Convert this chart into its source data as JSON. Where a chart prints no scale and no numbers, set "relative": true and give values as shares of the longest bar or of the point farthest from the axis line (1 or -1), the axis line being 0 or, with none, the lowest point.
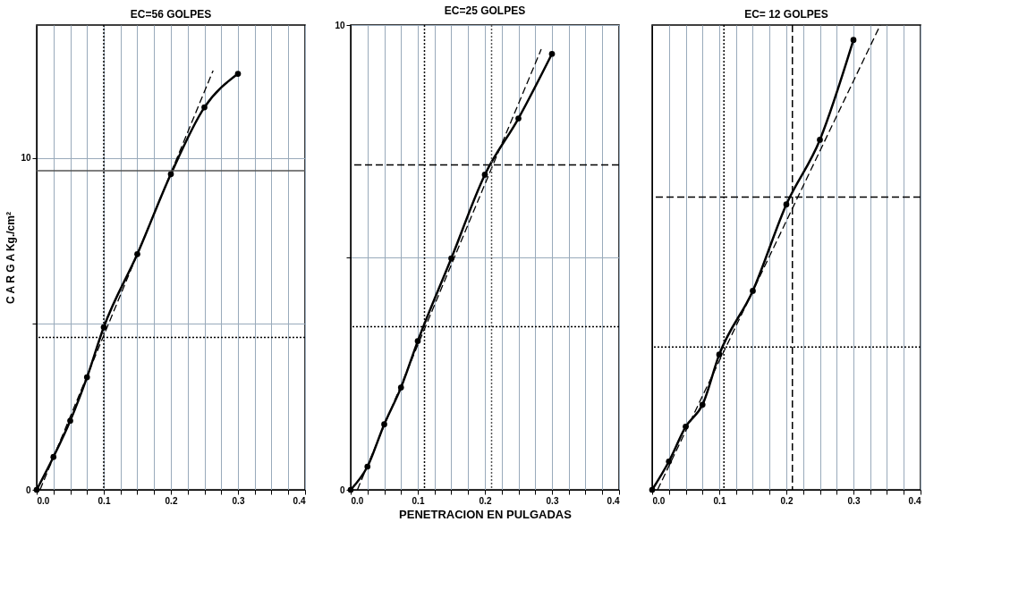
{
  "chart_data": [
    {
      "type": "line",
      "title": "EC=56 GOLPES",
      "ylabel": "C A R G A   Kg./cm²",
      "xlim": [
        0,
        0.4
      ],
      "ylim": [
        0,
        14
      ],
      "xticks": [
        {
          "value": 0,
          "label": "0.0"
        },
        {
          "value": 0.025,
          "label": null
        },
        {
          "value": 0.05,
          "label": null
        },
        {
          "value": 0.075,
          "label": null
        },
        {
          "value": 0.1,
          "label": "0.1"
        },
        {
          "value": 0.125,
          "label": null
        },
        {
          "value": 0.15,
          "label": null
        },
        {
          "value": 0.175,
          "label": null
        },
        {
          "value": 0.2,
          "label": "0.2"
        },
        {
          "value": 0.225,
          "label": null
        },
        {
          "value": 0.25,
          "label": null
        },
        {
          "value": 0.275,
          "label": null
        },
        {
          "value": 0.3,
          "label": "0.3"
        },
        {
          "value": 0.325,
          "label": null
        },
        {
          "value": 0.35,
          "label": null
        },
        {
          "value": 0.375,
          "label": null
        },
        {
          "value": 0.4,
          "label": "0.4"
        }
      ],
      "yticks": [
        0,
        {
          "value": 5,
          "label": null
        },
        10
      ],
      "grid": true,
      "series": [
        {
          "type": "line",
          "color": "#000000",
          "marker": "circle",
          "line_style": "solid",
          "x": [
            0,
            0.025,
            0.05,
            0.075,
            0.1,
            0.15,
            0.2,
            0.25,
            0.3
          ],
          "values": [
            0,
            0.99,
            2.08,
            3.39,
            4.9,
            7.1,
            9.51,
            11.52,
            12.53
          ]
        },
        {
          "type": "line",
          "color": "#000000",
          "marker": "none",
          "line_style": "dashed",
          "x": [
            0.005,
            0.263
          ],
          "values": [
            0,
            12.63
          ]
        }
      ],
      "ref_lines": [
        {
          "axis": "y",
          "value": 4.59,
          "line_style": "dotted",
          "color": "#000000"
        },
        {
          "axis": "x",
          "value": 0.1,
          "line_style": "dotted",
          "color": "#000000"
        },
        {
          "axis": "y",
          "value": 9.61,
          "line_style": "solid",
          "color": "#555555"
        }
      ]
    },
    {
      "type": "line",
      "title": "EC=25 GOLPES",
      "xlabel": "PENETRACION EN PULGADAS",
      "xlim": [
        0,
        0.4
      ],
      "ylim": [
        0,
        10
      ],
      "xticks": [
        {
          "value": 0,
          "label": "0.0"
        },
        {
          "value": 0.025,
          "label": null
        },
        {
          "value": 0.05,
          "label": null
        },
        {
          "value": 0.075,
          "label": null
        },
        {
          "value": 0.1,
          "label": "0.1"
        },
        {
          "value": 0.125,
          "label": null
        },
        {
          "value": 0.15,
          "label": null
        },
        {
          "value": 0.175,
          "label": null
        },
        {
          "value": 0.2,
          "label": "0.2"
        },
        {
          "value": 0.225,
          "label": null
        },
        {
          "value": 0.25,
          "label": null
        },
        {
          "value": 0.275,
          "label": null
        },
        {
          "value": 0.3,
          "label": "0.3"
        },
        {
          "value": 0.325,
          "label": null
        },
        {
          "value": 0.35,
          "label": null
        },
        {
          "value": 0.375,
          "label": null
        },
        {
          "value": 0.4,
          "label": "0.4"
        }
      ],
      "yticks": [
        0,
        {
          "value": 5,
          "label": null
        },
        10
      ],
      "grid": true,
      "series": [
        {
          "type": "line",
          "color": "#000000",
          "marker": "circle",
          "line_style": "solid",
          "x": [
            0,
            0.025,
            0.05,
            0.075,
            0.1,
            0.15,
            0.2,
            0.25,
            0.3
          ],
          "values": [
            0,
            0.5,
            1.41,
            2.2,
            3.2,
            4.98,
            6.78,
            7.99,
            9.38
          ]
        },
        {
          "type": "line",
          "color": "#000000",
          "marker": "none",
          "line_style": "dashed",
          "x": [
            0.01,
            0.284
          ],
          "values": [
            0,
            9.48
          ]
        }
      ],
      "ref_lines": [
        {
          "axis": "y",
          "value": 3.51,
          "line_style": "dotted",
          "color": "#000000"
        },
        {
          "axis": "x",
          "value": 0.11,
          "line_style": "dotted",
          "color": "#000000"
        },
        {
          "axis": "y",
          "value": 6.99,
          "line_style": "dashed",
          "color": "#000000"
        },
        {
          "axis": "x",
          "value": 0.21,
          "line_style": "dotted",
          "color": "#555555"
        }
      ]
    },
    {
      "type": "line",
      "title": "EC= 12 GOLPES",
      "relative": true,
      "xlim": [
        0,
        0.4
      ],
      "xticks": [
        {
          "value": 0,
          "label": "0.0"
        },
        {
          "value": 0.025,
          "label": null
        },
        {
          "value": 0.05,
          "label": null
        },
        {
          "value": 0.075,
          "label": null
        },
        {
          "value": 0.1,
          "label": "0.1"
        },
        {
          "value": 0.125,
          "label": null
        },
        {
          "value": 0.15,
          "label": null
        },
        {
          "value": 0.175,
          "label": null
        },
        {
          "value": 0.2,
          "label": "0.2"
        },
        {
          "value": 0.225,
          "label": null
        },
        {
          "value": 0.25,
          "label": null
        },
        {
          "value": 0.275,
          "label": null
        },
        {
          "value": 0.3,
          "label": "0.3"
        },
        {
          "value": 0.325,
          "label": null
        },
        {
          "value": 0.35,
          "label": null
        },
        {
          "value": 0.375,
          "label": null
        },
        {
          "value": 0.4,
          "label": "0.4"
        }
      ],
      "grid": true,
      "series": [
        {
          "type": "line",
          "color": "#000000",
          "marker": "circle",
          "line_style": "solid",
          "x": [
            0,
            0.025,
            0.05,
            0.075,
            0.1,
            0.15,
            0.2,
            0.25,
            0.3
          ],
          "values": [
            0,
            0.061,
            0.136,
            0.183,
            0.291,
            0.428,
            0.614,
            0.753,
            0.968
          ]
        },
        {
          "type": "line",
          "color": "#000000",
          "marker": "none",
          "line_style": "dashed",
          "x": [
            0.008,
            0.34
          ],
          "values": [
            0,
            1
          ]
        }
      ],
      "ref_lines": [
        {
          "axis": "y",
          "value": 0.307,
          "line_style": "dotted",
          "color": "#000000"
        },
        {
          "axis": "x",
          "value": 0.107,
          "line_style": "dotted",
          "color": "#000000"
        },
        {
          "axis": "y",
          "value": 0.63,
          "line_style": "dashed",
          "color": "#000000"
        },
        {
          "axis": "x",
          "value": 0.209,
          "line_style": "dashed",
          "color": "#000000"
        }
      ]
    }
  ]
}
